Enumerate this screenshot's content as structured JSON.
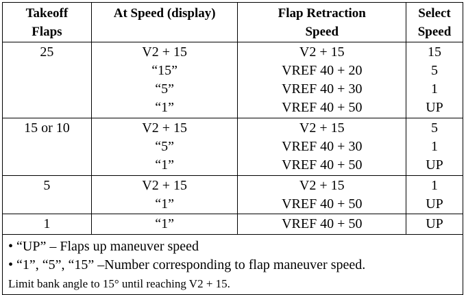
{
  "headers": {
    "col1_line1": "Takeoff",
    "col1_line2": "Flaps",
    "col2": "At Speed (display)",
    "col3_line1": "Flap Retraction",
    "col3_line2": "Speed",
    "col4_line1": "Select",
    "col4_line2": "Speed"
  },
  "groups": [
    {
      "flaps": "25",
      "rows": [
        {
          "at_speed": "V2 + 15",
          "retraction": "V2 + 15",
          "select": "15"
        },
        {
          "at_speed": "“15”",
          "retraction": "VREF 40 + 20",
          "select": "5"
        },
        {
          "at_speed": "“5”",
          "retraction": "VREF 40 + 30",
          "select": "1"
        },
        {
          "at_speed": "“1”",
          "retraction": "VREF 40 + 50",
          "select": "UP"
        }
      ]
    },
    {
      "flaps": "15 or 10",
      "rows": [
        {
          "at_speed": "V2 + 15",
          "retraction": "V2 + 15",
          "select": "5"
        },
        {
          "at_speed": "“5”",
          "retraction": "VREF 40 + 30",
          "select": "1"
        },
        {
          "at_speed": "“1”",
          "retraction": "VREF 40 + 50",
          "select": "UP"
        }
      ]
    },
    {
      "flaps": "5",
      "rows": [
        {
          "at_speed": "V2 + 15",
          "retraction": "V2 + 15",
          "select": "1"
        },
        {
          "at_speed": "“1”",
          "retraction": "VREF 40 + 50",
          "select": "UP"
        }
      ]
    },
    {
      "flaps": "1",
      "rows": [
        {
          "at_speed": "“1”",
          "retraction": "VREF 40 + 50",
          "select": "UP"
        }
      ]
    }
  ],
  "notes": {
    "bullet1": "• “UP” – Flaps up maneuver speed",
    "bullet2": "• “1”, “5”, “15” –Number corresponding to flap maneuver speed.",
    "footer": "Limit bank angle to 15° until reaching V2 + 15."
  }
}
